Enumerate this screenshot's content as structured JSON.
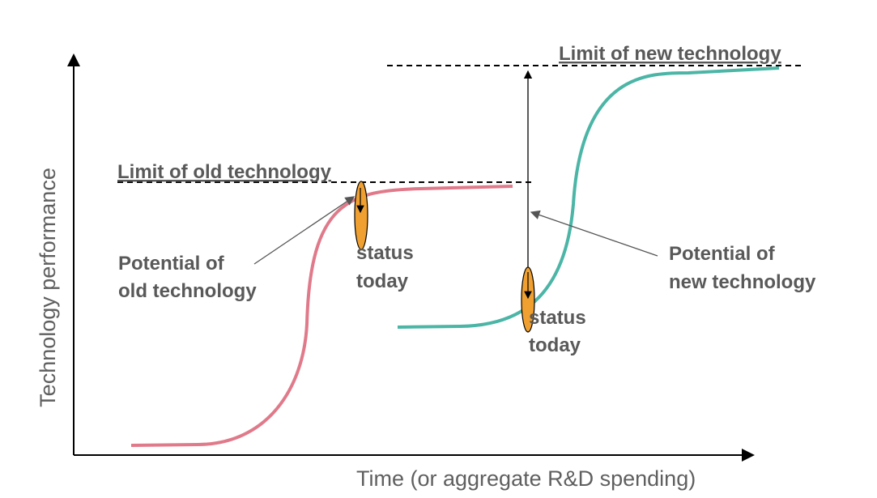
{
  "axes": {
    "y_label": "Technology performance",
    "x_label": "Time (or aggregate R&D spending)"
  },
  "labels": {
    "limit_old": "Limit of old technology",
    "limit_new": "Limit of new technology",
    "potential_old": [
      "Potential of",
      "old technology"
    ],
    "potential_new": [
      "Potential of",
      "new technology"
    ],
    "status_old": [
      "status",
      "today"
    ],
    "status_new": [
      "status",
      "today"
    ]
  },
  "colors": {
    "old_curve": "#e07a8a",
    "new_curve": "#4bb5a6",
    "marker": "#f0a030",
    "axis": "#000000",
    "text": "#595959"
  }
}
